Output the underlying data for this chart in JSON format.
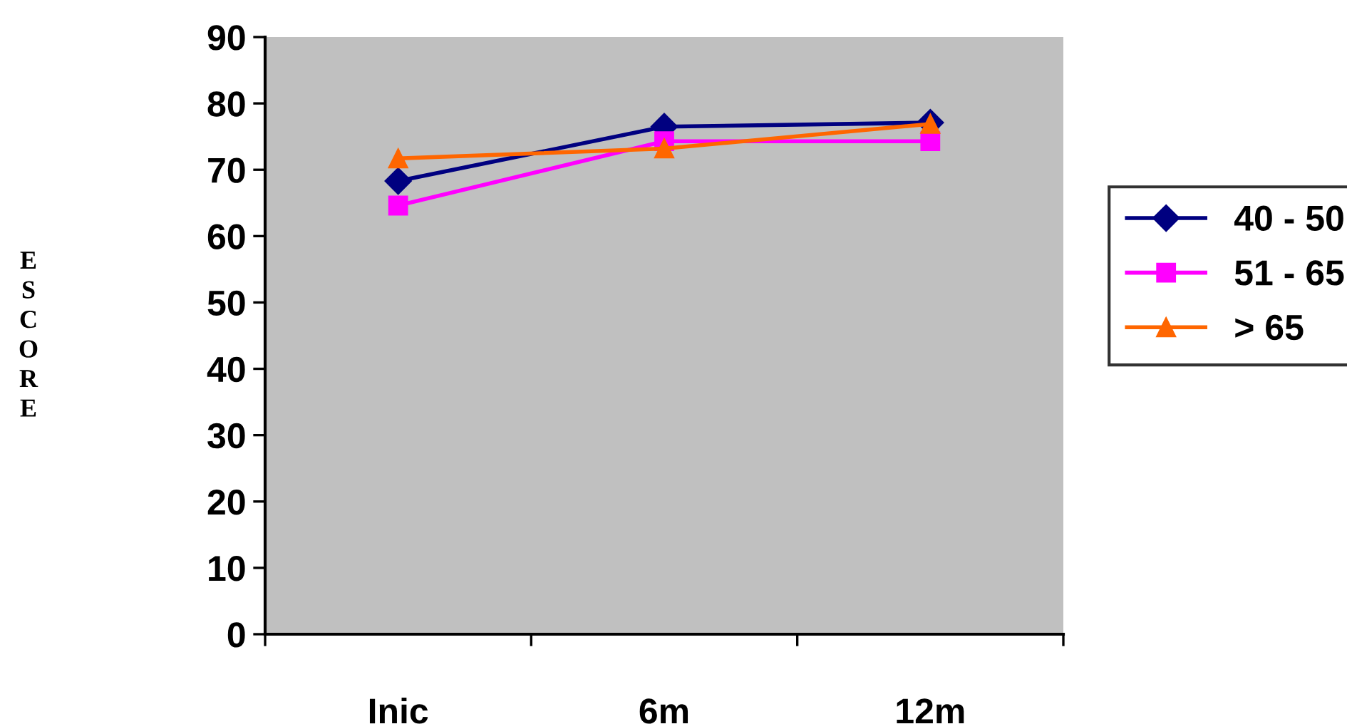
{
  "chart_data": {
    "type": "line",
    "annotations": [
      "ESCORE"
    ],
    "categories": [
      "Inic",
      "6m",
      "12m"
    ],
    "series": [
      {
        "name": "40 - 50",
        "color": "#000080",
        "marker": "diamond",
        "values": [
          68.3,
          76.5,
          77.1
        ]
      },
      {
        "name": "51 - 65",
        "color": "#ff00ff",
        "marker": "square",
        "values": [
          64.6,
          74.3,
          74.3
        ]
      },
      {
        "name": "> 65",
        "color": "#ff6600",
        "marker": "triangle",
        "values": [
          71.7,
          73.2,
          76.9
        ]
      }
    ],
    "ylim": [
      0,
      90
    ],
    "yticks": [
      0,
      10,
      20,
      30,
      40,
      50,
      60,
      70,
      80,
      90
    ],
    "grid": false,
    "legend": "right",
    "line_style": "solid"
  }
}
